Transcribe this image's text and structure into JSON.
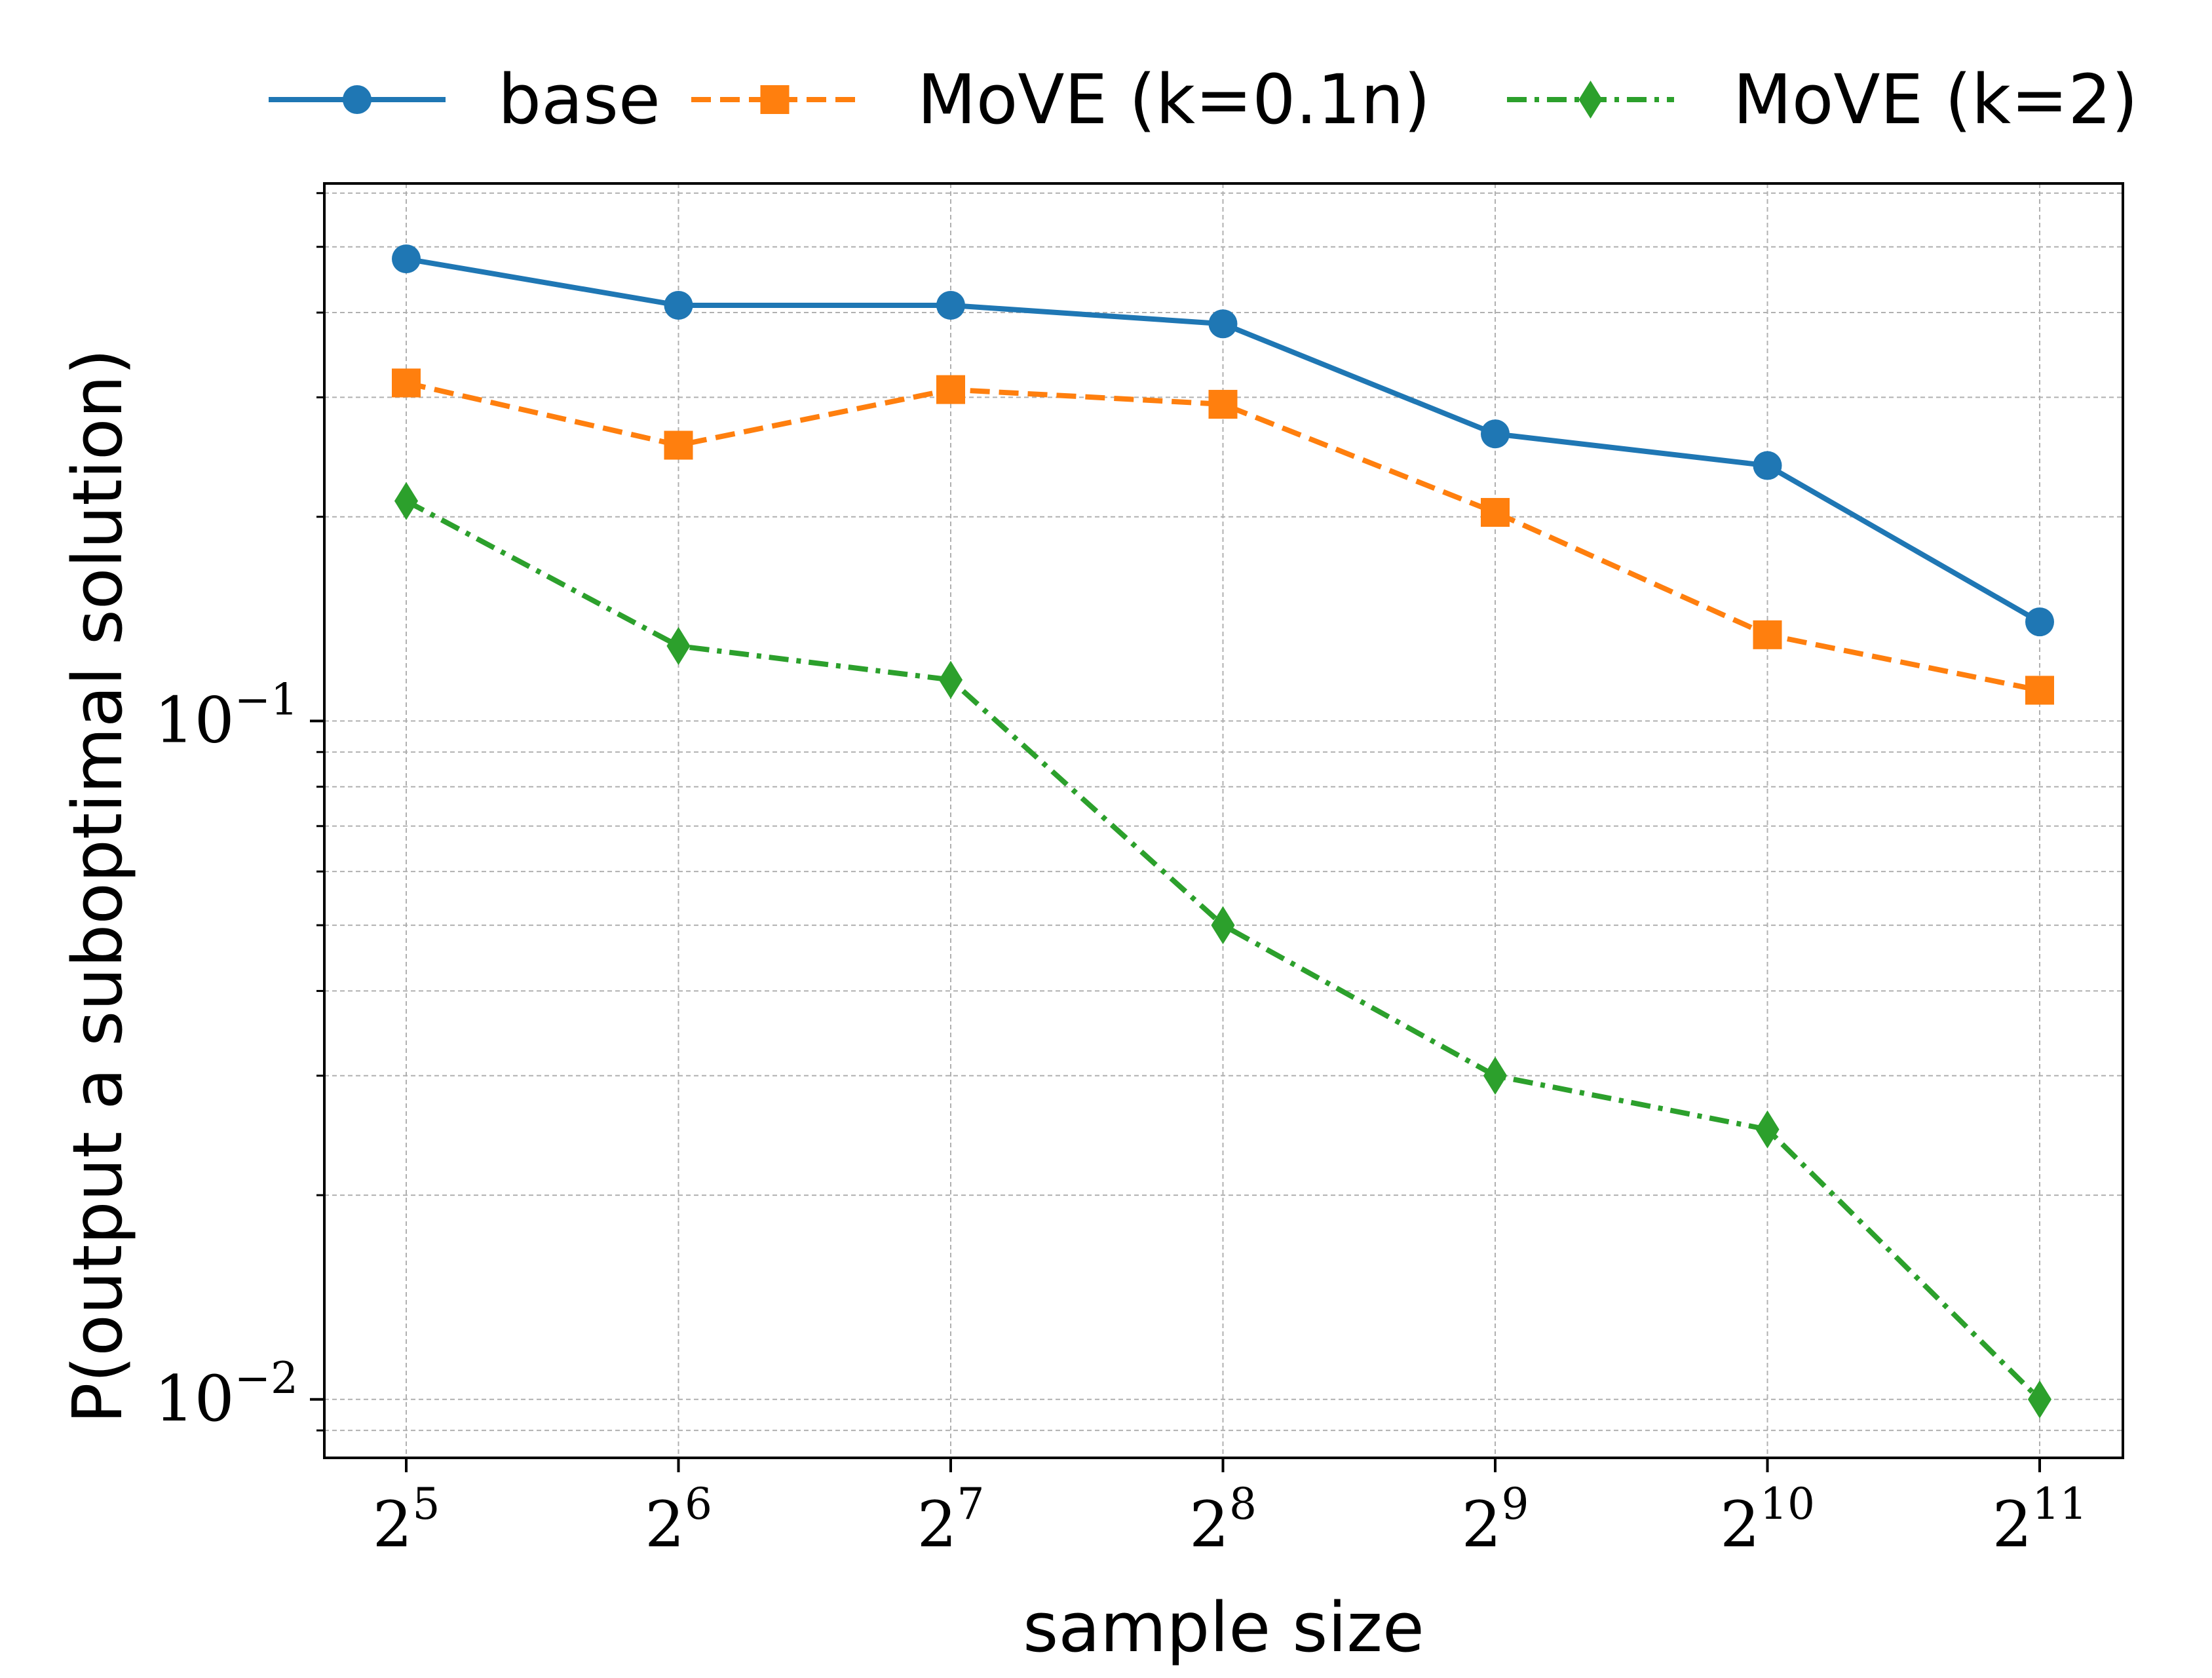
{
  "chart_data": {
    "type": "line",
    "xlabel": "sample size",
    "ylabel": "P(output a suboptimal solution)",
    "yscale": "log",
    "xscale": "log2",
    "grid": true,
    "legend_position": "top, outside plot",
    "x": [
      32,
      64,
      128,
      256,
      512,
      1024,
      2048
    ],
    "x_tick_labels": [
      {
        "base": "2",
        "exp": "5"
      },
      {
        "base": "2",
        "exp": "6"
      },
      {
        "base": "2",
        "exp": "7"
      },
      {
        "base": "2",
        "exp": "8"
      },
      {
        "base": "2",
        "exp": "9"
      },
      {
        "base": "2",
        "exp": "10"
      },
      {
        "base": "2",
        "exp": "11"
      }
    ],
    "y_tick_labels": [
      {
        "value": 0.1,
        "base": "10",
        "exp": "−1"
      },
      {
        "value": 0.01,
        "base": "10",
        "exp": "−2"
      }
    ],
    "ylim": [
      0.0082,
      0.62
    ],
    "series": [
      {
        "name": "base",
        "color": "#1f77b4",
        "marker": "circle",
        "linestyle": "solid",
        "values": [
          0.48,
          0.41,
          0.41,
          0.385,
          0.265,
          0.238,
          0.14
        ]
      },
      {
        "name": "MoVE (k=0.1n)",
        "color": "#ff7f0e",
        "marker": "square",
        "linestyle": "dashed",
        "values": [
          0.315,
          0.255,
          0.308,
          0.293,
          0.203,
          0.134,
          0.111
        ]
      },
      {
        "name": "MoVE (k=2)",
        "color": "#2ca02c",
        "marker": "diamond",
        "linestyle": "dashdot",
        "values": [
          0.211,
          0.129,
          0.115,
          0.05,
          0.03,
          0.025,
          0.01
        ]
      }
    ]
  }
}
